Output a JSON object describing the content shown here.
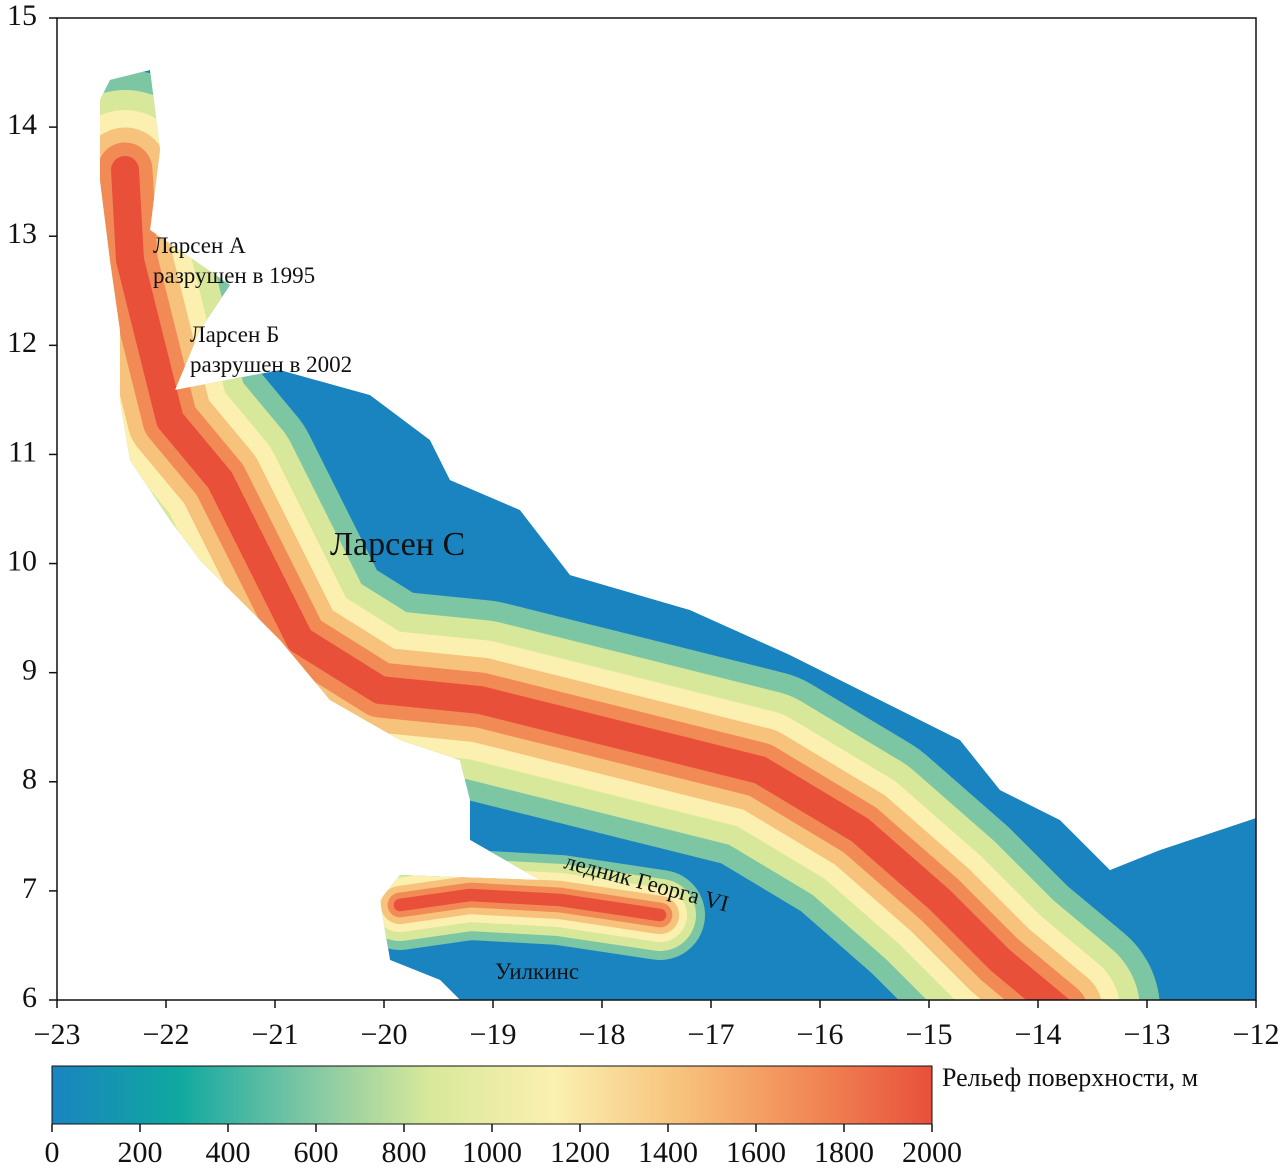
{
  "map": {
    "xlim": [
      -23,
      -12
    ],
    "xticks": [
      {
        "value": -23,
        "label": "−23"
      },
      {
        "value": -22,
        "label": "−22"
      },
      {
        "value": -21,
        "label": "−21"
      },
      {
        "value": -20,
        "label": "−20"
      },
      {
        "value": -19,
        "label": "−19"
      },
      {
        "value": -18,
        "label": "−18"
      },
      {
        "value": -17,
        "label": "−17"
      },
      {
        "value": -16,
        "label": "−16"
      },
      {
        "value": -15,
        "label": "−15"
      },
      {
        "value": -14,
        "label": "−14"
      },
      {
        "value": -13,
        "label": "−13"
      },
      {
        "value": -12,
        "label": "−12"
      }
    ],
    "ylim": [
      6,
      15
    ],
    "yticks": [
      6,
      7,
      8,
      9,
      10,
      11,
      12,
      13,
      14,
      15
    ],
    "annotations": [
      "Ларсен А",
      "разрушен в 1995",
      "Ларсен Б",
      "разрушен в 2002",
      "Ларсен С",
      "ледник Георга VI",
      "Уилкинс"
    ],
    "colorbar": {
      "label": "Рельеф поверхности, м",
      "lim": [
        0,
        2000
      ],
      "ticks": [
        0,
        200,
        400,
        600,
        800,
        1000,
        1200,
        1400,
        1600,
        1800,
        2000
      ],
      "colors": [
        "#1a84c0",
        "#0fa8a0",
        "#7cc6a4",
        "#d8e89a",
        "#fbf0b0",
        "#f7c27c",
        "#f28a56",
        "#e8503a"
      ]
    }
  }
}
